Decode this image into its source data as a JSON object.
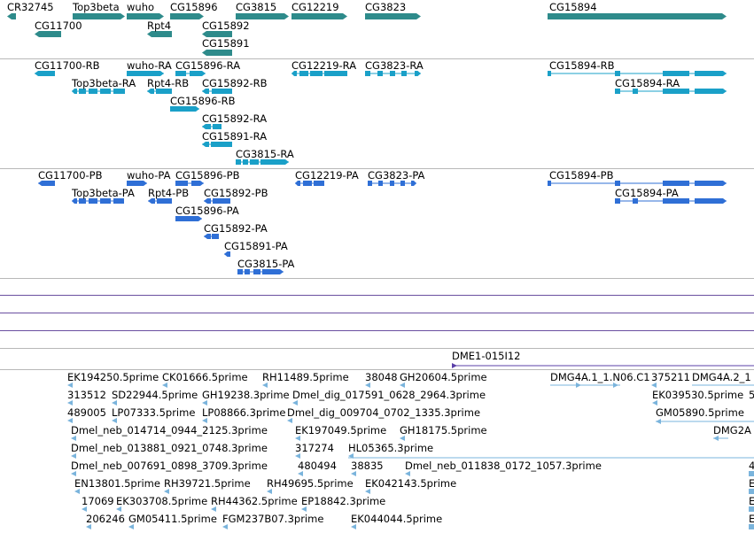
{
  "colors": {
    "gene": "#2e8b8b",
    "rna": "#1aa0c8",
    "protein": "#2f6fd6",
    "est": "#7ab4dc",
    "contig": "#5b3fa8",
    "separator": "#b8b8b8"
  },
  "tracks": {
    "genes": [
      {
        "label": "CR32745",
        "shape": "rev"
      },
      {
        "label": "Top3beta",
        "shape": "fwd"
      },
      {
        "label": "wuho",
        "shape": "fwd"
      },
      {
        "label": "CG15896",
        "shape": "fwd"
      },
      {
        "label": "CG3815",
        "shape": "fwd"
      },
      {
        "label": "CG12219",
        "shape": "fwd"
      },
      {
        "label": "CG3823",
        "shape": "fwd"
      },
      {
        "label": "CG15894",
        "shape": "fwd"
      },
      {
        "label": "CG11700",
        "shape": "fwd"
      },
      {
        "label": "Rpt4",
        "shape": "fwd"
      },
      {
        "label": "CG15892",
        "shape": "fwd"
      },
      {
        "label": "CG15891",
        "shape": "fwd"
      }
    ],
    "transcripts": [
      {
        "label": "CG11700-RB"
      },
      {
        "label": "wuho-RA"
      },
      {
        "label": "CG15896-RA"
      },
      {
        "label": "CG12219-RA"
      },
      {
        "label": "CG3823-RA"
      },
      {
        "label": "CG15894-RB"
      },
      {
        "label": "Top3beta-RA"
      },
      {
        "label": "Rpt4-RB"
      },
      {
        "label": "CG15892-RB"
      },
      {
        "label": "CG15894-RA"
      },
      {
        "label": "CG15896-RB"
      },
      {
        "label": "CG15892-RA"
      },
      {
        "label": "CG15891-RA"
      },
      {
        "label": "CG3815-RA"
      }
    ],
    "proteins": [
      {
        "label": "CG11700-PB"
      },
      {
        "label": "wuho-PA"
      },
      {
        "label": "CG15896-PB"
      },
      {
        "label": "CG12219-PA"
      },
      {
        "label": "CG3823-PA"
      },
      {
        "label": "CG15894-PB"
      },
      {
        "label": "Top3beta-PA"
      },
      {
        "label": "Rpt4-PB"
      },
      {
        "label": "CG15892-PB"
      },
      {
        "label": "CG15894-PA"
      },
      {
        "label": "CG15896-PA"
      },
      {
        "label": "CG15892-PA"
      },
      {
        "label": "CG15891-PA"
      },
      {
        "label": "CG3815-PA"
      }
    ],
    "contig": {
      "label": "DME1-015I12"
    },
    "ests": [
      {
        "label": "EK194250.5prime"
      },
      {
        "label": "CK01666.5prime"
      },
      {
        "label": "RH11489.5prime"
      },
      {
        "label": "38048"
      },
      {
        "label": "GH20604.5prime"
      },
      {
        "label": "DMG4A.1_1.N06.C1"
      },
      {
        "label": "375211"
      },
      {
        "label": "DMG4A.2_1"
      },
      {
        "label": "313512"
      },
      {
        "label": "SD22944.5prime"
      },
      {
        "label": "GH19238.3prime"
      },
      {
        "label": "Dmel_dig_017591_0628_2964.3prime"
      },
      {
        "label": "EK039530.5prime"
      },
      {
        "label": "5"
      },
      {
        "label": "489005"
      },
      {
        "label": "LP07333.5prime"
      },
      {
        "label": "LP08866.3prime"
      },
      {
        "label": "Dmel_dig_009704_0702_1335.3prime"
      },
      {
        "label": "GM05890.5prime"
      },
      {
        "label": "Dmel_neb_014714_0944_2125.3prime"
      },
      {
        "label": "EK197049.5prime"
      },
      {
        "label": "GH18175.5prime"
      },
      {
        "label": "DMG2A"
      },
      {
        "label": "Dmel_neb_013881_0921_0748.3prime"
      },
      {
        "label": "317274"
      },
      {
        "label": "HL05365.3prime"
      },
      {
        "label": "Dmel_neb_007691_0898_3709.3prime"
      },
      {
        "label": "480494"
      },
      {
        "label": "38835"
      },
      {
        "label": "Dmel_neb_011838_0172_1057.3prime"
      },
      {
        "label": "4"
      },
      {
        "label": "EN13801.5prime"
      },
      {
        "label": "RH39721.5prime"
      },
      {
        "label": "RH49695.5prime"
      },
      {
        "label": "EK042143.5prime"
      },
      {
        "label": "E"
      },
      {
        "label": "17069"
      },
      {
        "label": "EK303708.5prime"
      },
      {
        "label": "RH44362.5prime"
      },
      {
        "label": "EP18842.3prime"
      },
      {
        "label": "E"
      },
      {
        "label": "206246"
      },
      {
        "label": "GM05411.5prime"
      },
      {
        "label": "FGM237B07.3prime"
      },
      {
        "label": "EK044044.5prime"
      },
      {
        "label": "E"
      }
    ]
  }
}
